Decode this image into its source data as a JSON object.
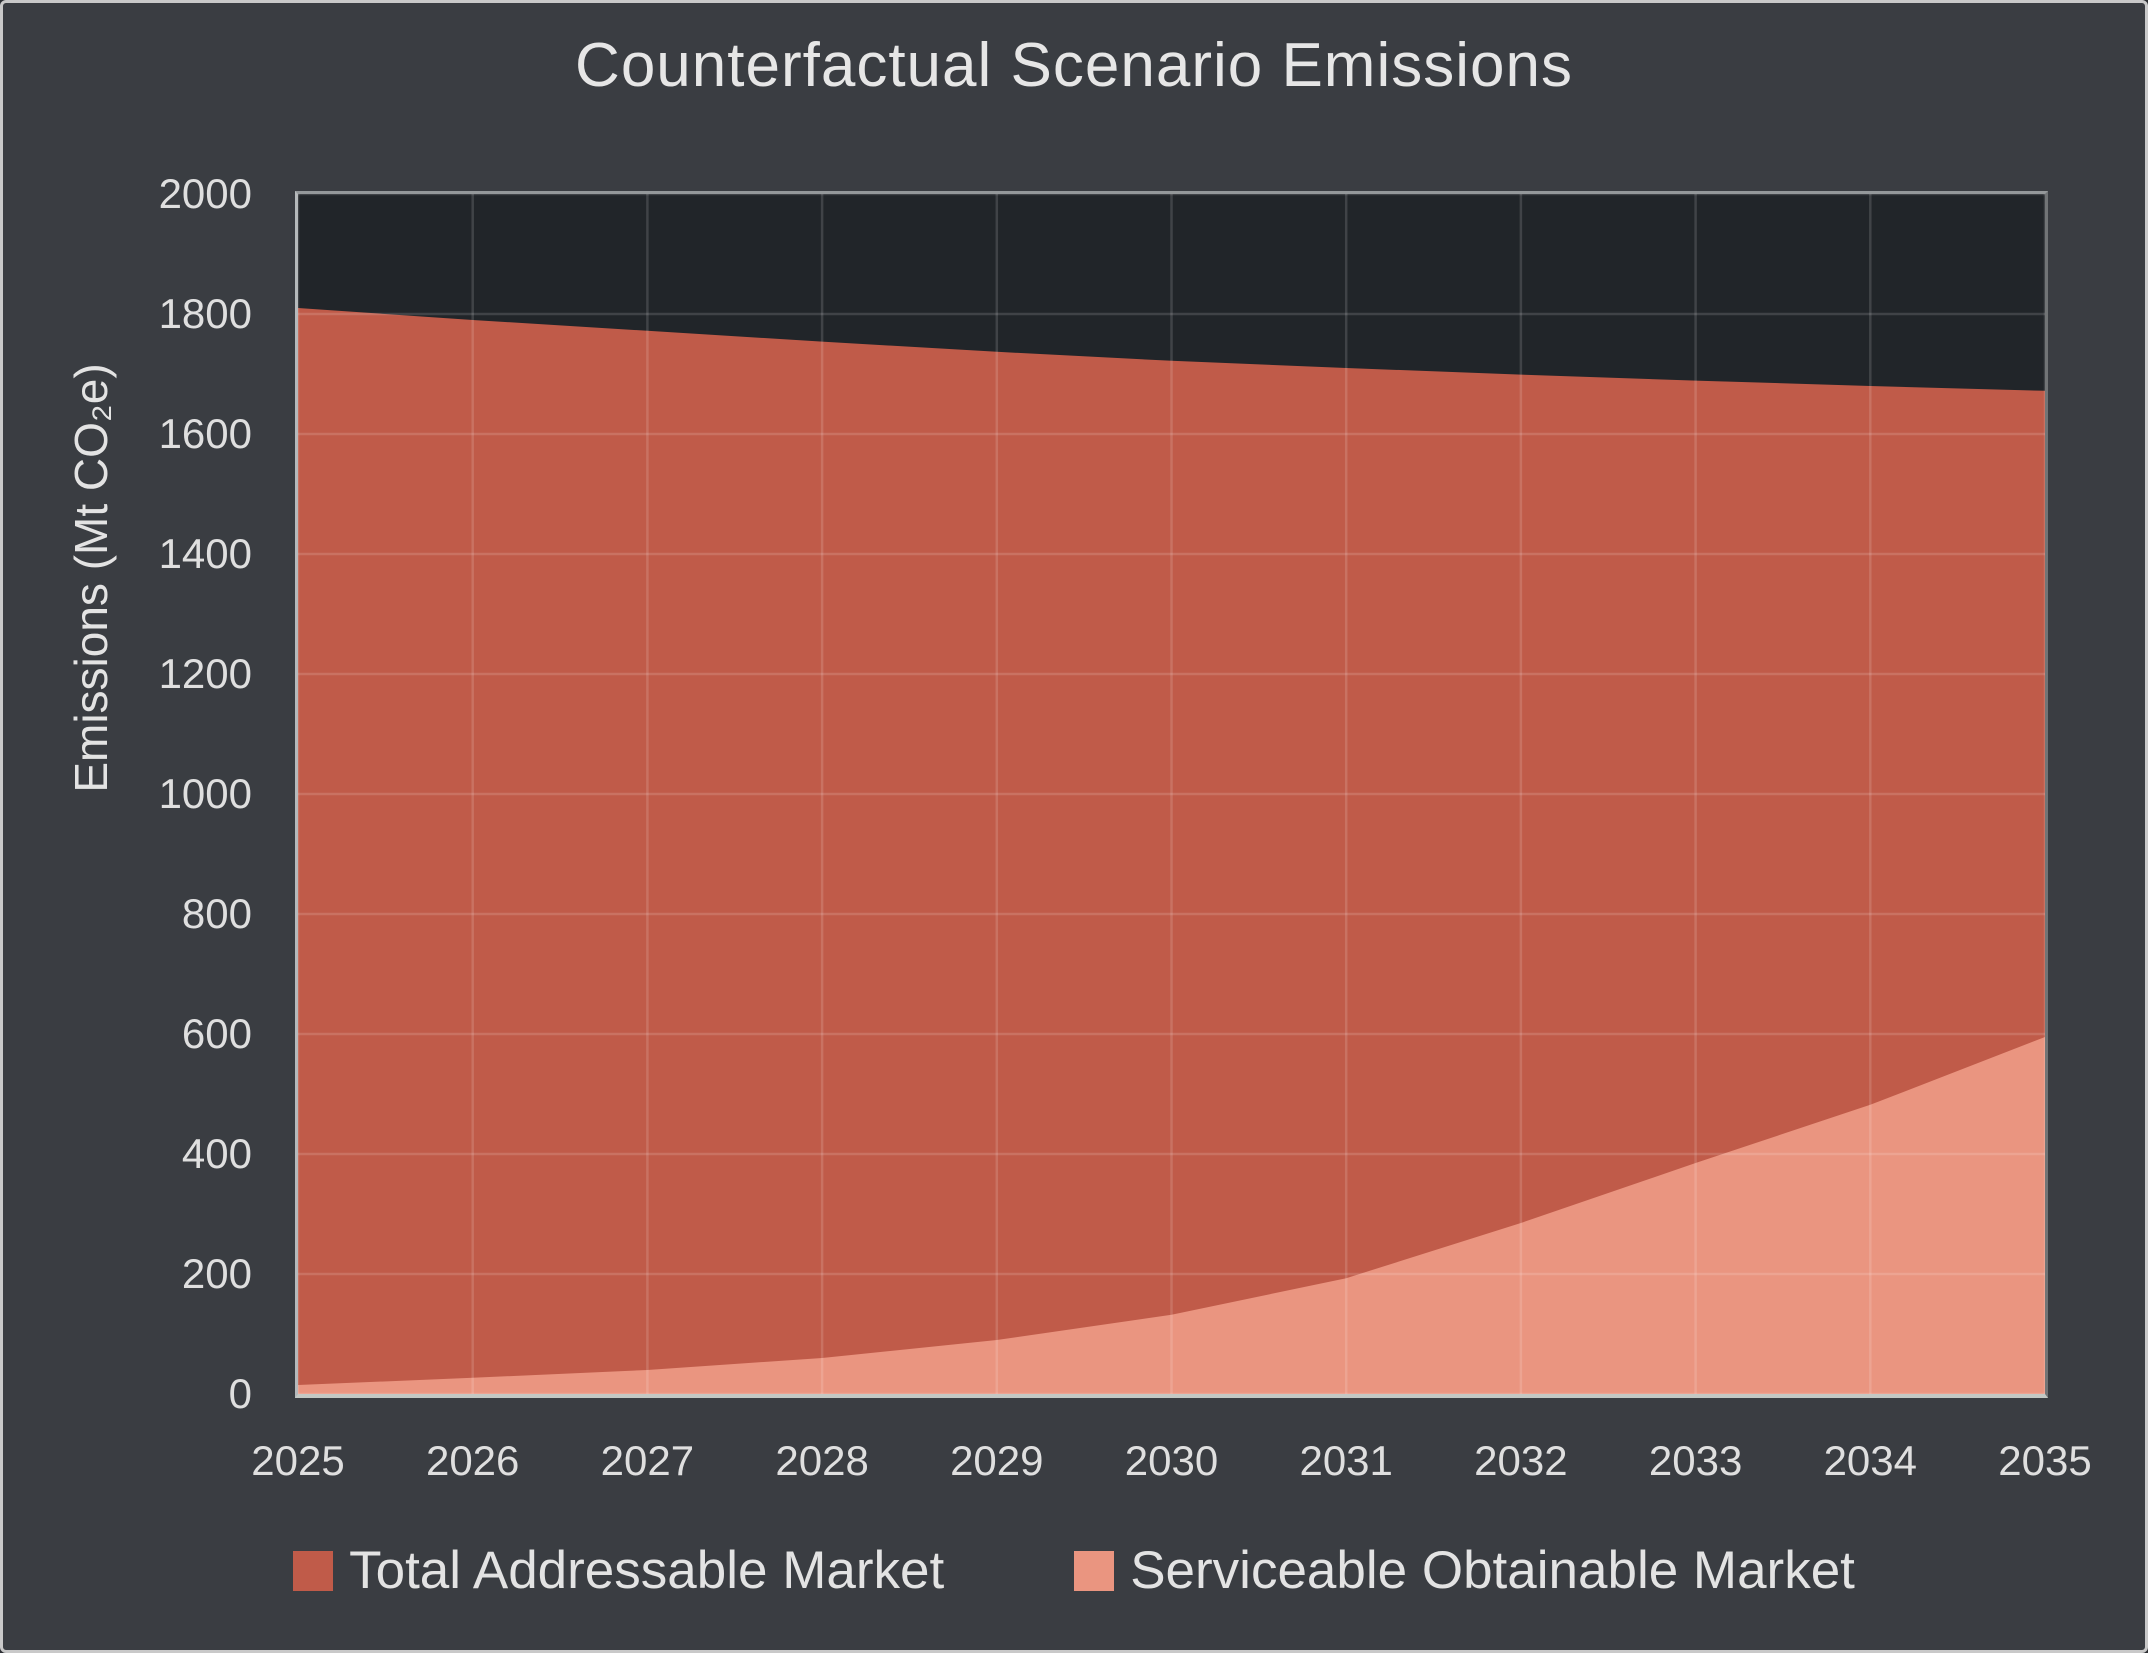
{
  "title": "Counterfactual Scenario Emissions",
  "y_axis": {
    "title": "Emissions (Mt CO₂e)",
    "tick_labels": [
      "2000",
      "1800",
      "1600",
      "1400",
      "1200",
      "1000",
      "800",
      "600",
      "400",
      "200",
      "0"
    ]
  },
  "x_axis": {
    "tick_labels": [
      "2025",
      "2026",
      "2027",
      "2028",
      "2029",
      "2030",
      "2031",
      "2032",
      "2033",
      "2034",
      "2035"
    ]
  },
  "legend": {
    "items": [
      {
        "label": "Total Addressable Market",
        "color": "#c05b49"
      },
      {
        "label": "Serviceable Obtainable Market",
        "color": "#ea9580"
      }
    ]
  },
  "colors": {
    "figure_background": "#3a3d42",
    "plot_background": "#212529",
    "tam_area": "#c05b49",
    "som_area": "#ea9580",
    "gridline": "rgba(255,255,255,0.14)",
    "text": "#e3e3e3"
  },
  "chart_data": {
    "type": "area",
    "title": "Counterfactual Scenario Emissions",
    "xlabel": "",
    "ylabel": "Emissions (Mt CO₂e)",
    "x": [
      2025,
      2026,
      2027,
      2028,
      2029,
      2030,
      2031,
      2032,
      2033,
      2034,
      2035
    ],
    "series": [
      {
        "name": "Total Addressable Market",
        "color": "#c05b49",
        "values": [
          1810,
          1790,
          1772,
          1754,
          1737,
          1722,
          1710,
          1699,
          1689,
          1680,
          1672
        ]
      },
      {
        "name": "Serviceable Obtainable Market",
        "color": "#ea9580",
        "values": [
          15,
          27,
          40,
          60,
          90,
          132,
          193,
          285,
          385,
          482,
          595
        ]
      }
    ],
    "xlim": [
      2025,
      2035
    ],
    "ylim": [
      0,
      2000
    ],
    "x_tick_step": 1,
    "y_tick_step": 200,
    "grid": true,
    "legend_position": "bottom"
  }
}
